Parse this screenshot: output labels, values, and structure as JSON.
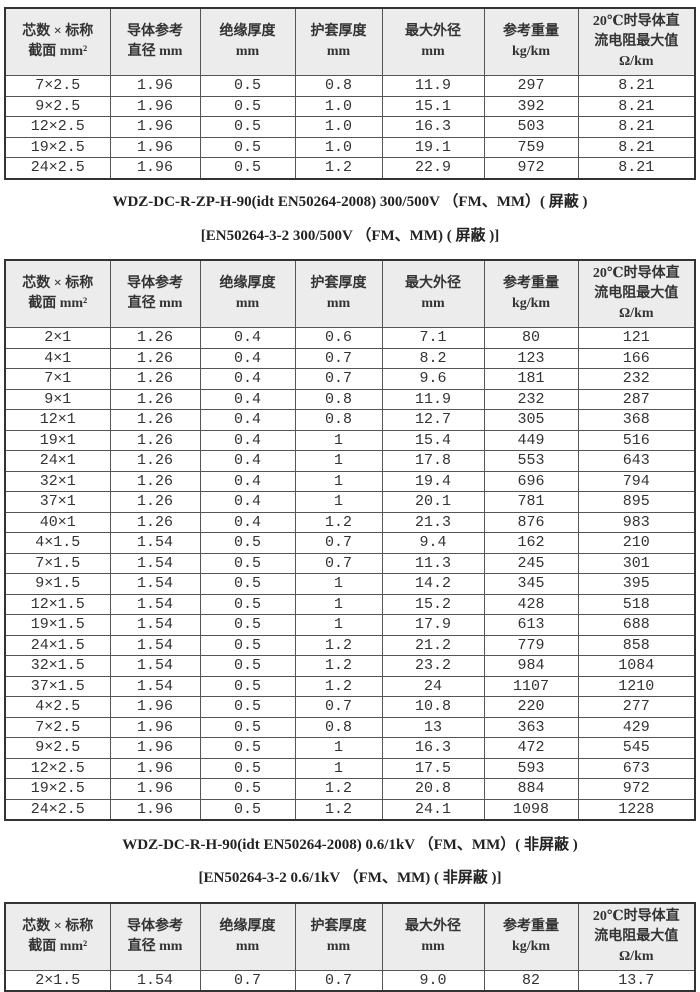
{
  "header": [
    [
      "芯数 × 标称",
      "截面 mm²"
    ],
    [
      "导体参考",
      "直径 mm"
    ],
    [
      "绝缘厚度",
      "mm"
    ],
    [
      "护套厚度",
      "mm"
    ],
    [
      "最大外径",
      "mm"
    ],
    [
      "参考重量",
      "kg/km"
    ],
    [
      "20℃时导体直",
      "流电阻最大值",
      "Ω/km"
    ]
  ],
  "table1": {
    "rows": [
      [
        "7×2.5",
        "1.96",
        "0.5",
        "0.8",
        "11.9",
        "297",
        "8.21"
      ],
      [
        "9×2.5",
        "1.96",
        "0.5",
        "1.0",
        "15.1",
        "392",
        "8.21"
      ],
      [
        "12×2.5",
        "1.96",
        "0.5",
        "1.0",
        "16.3",
        "503",
        "8.21"
      ],
      [
        "19×2.5",
        "1.96",
        "0.5",
        "1.0",
        "19.1",
        "759",
        "8.21"
      ],
      [
        "24×2.5",
        "1.96",
        "0.5",
        "1.2",
        "22.9",
        "972",
        "8.21"
      ]
    ]
  },
  "section2": {
    "title": "WDZ-DC-R-ZP-H-90(idt EN50264-2008)  300/500V  （FM、MM）( 屏蔽 )",
    "subtitle": "[EN50264-3-2   300/500V  （FM、MM) ( 屏蔽 )]"
  },
  "table2": {
    "rows": [
      [
        "2×1",
        "1.26",
        "0.4",
        "0.6",
        "7.1",
        "80",
        "121"
      ],
      [
        "4×1",
        "1.26",
        "0.4",
        "0.7",
        "8.2",
        "123",
        "166"
      ],
      [
        "7×1",
        "1.26",
        "0.4",
        "0.7",
        "9.6",
        "181",
        "232"
      ],
      [
        "9×1",
        "1.26",
        "0.4",
        "0.8",
        "11.9",
        "232",
        "287"
      ],
      [
        "12×1",
        "1.26",
        "0.4",
        "0.8",
        "12.7",
        "305",
        "368"
      ],
      [
        "19×1",
        "1.26",
        "0.4",
        "1",
        "15.4",
        "449",
        "516"
      ],
      [
        "24×1",
        "1.26",
        "0.4",
        "1",
        "17.8",
        "553",
        "643"
      ],
      [
        "32×1",
        "1.26",
        "0.4",
        "1",
        "19.4",
        "696",
        "794"
      ],
      [
        "37×1",
        "1.26",
        "0.4",
        "1",
        "20.1",
        "781",
        "895"
      ],
      [
        "40×1",
        "1.26",
        "0.4",
        "1.2",
        "21.3",
        "876",
        "983"
      ],
      [
        "4×1.5",
        "1.54",
        "0.5",
        "0.7",
        "9.4",
        "162",
        "210"
      ],
      [
        "7×1.5",
        "1.54",
        "0.5",
        "0.7",
        "11.3",
        "245",
        "301"
      ],
      [
        "9×1.5",
        "1.54",
        "0.5",
        "1",
        "14.2",
        "345",
        "395"
      ],
      [
        "12×1.5",
        "1.54",
        "0.5",
        "1",
        "15.2",
        "428",
        "518"
      ],
      [
        "19×1.5",
        "1.54",
        "0.5",
        "1",
        "17.9",
        "613",
        "688"
      ],
      [
        "24×1.5",
        "1.54",
        "0.5",
        "1.2",
        "21.2",
        "779",
        "858"
      ],
      [
        "32×1.5",
        "1.54",
        "0.5",
        "1.2",
        "23.2",
        "984",
        "1084"
      ],
      [
        "37×1.5",
        "1.54",
        "0.5",
        "1.2",
        "24",
        "1107",
        "1210"
      ],
      [
        "4×2.5",
        "1.96",
        "0.5",
        "0.7",
        "10.8",
        "220",
        "277"
      ],
      [
        "7×2.5",
        "1.96",
        "0.5",
        "0.8",
        "13",
        "363",
        "429"
      ],
      [
        "9×2.5",
        "1.96",
        "0.5",
        "1",
        "16.3",
        "472",
        "545"
      ],
      [
        "12×2.5",
        "1.96",
        "0.5",
        "1",
        "17.5",
        "593",
        "673"
      ],
      [
        "19×2.5",
        "1.96",
        "0.5",
        "1.2",
        "20.8",
        "884",
        "972"
      ],
      [
        "24×2.5",
        "1.96",
        "0.5",
        "1.2",
        "24.1",
        "1098",
        "1228"
      ]
    ]
  },
  "section3": {
    "title": "WDZ-DC-R-H-90(idt EN50264-2008)  0.6/1kV  （FM、MM）( 非屏蔽 )",
    "subtitle": "[EN50264-3-2   0.6/1kV  （FM、MM) ( 非屏蔽 )]"
  },
  "table3": {
    "rows": [
      [
        "2×1.5",
        "1.54",
        "0.7",
        "0.7",
        "9.0",
        "82",
        "13.7"
      ]
    ]
  }
}
